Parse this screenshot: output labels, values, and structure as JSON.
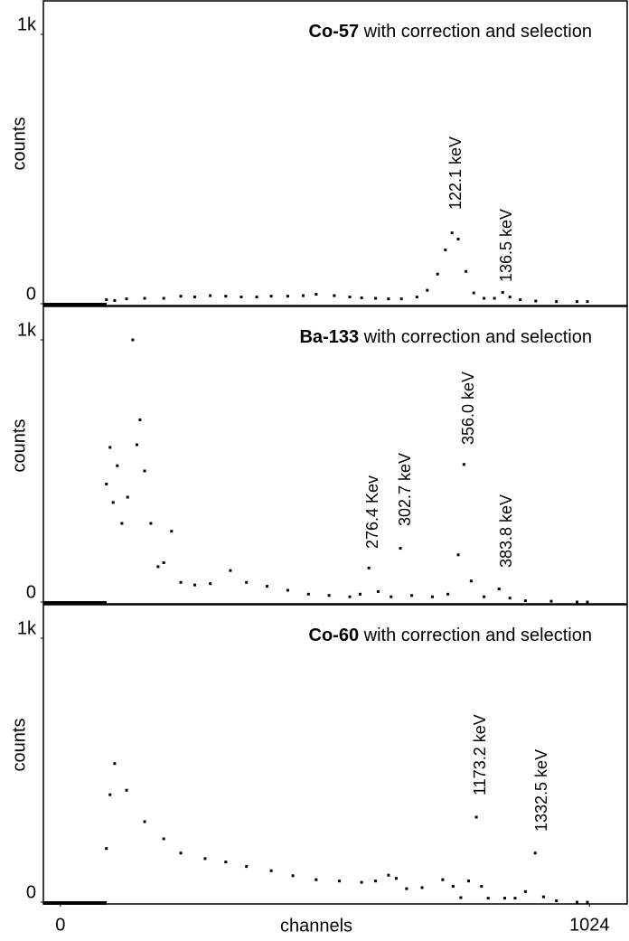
{
  "chart_data": [
    {
      "type": "scatter",
      "label": "Co-57",
      "title": "with correction and selection",
      "ylabel": "counts",
      "color": "#000000",
      "xlim": [
        -33,
        1097
      ],
      "ylim": [
        0,
        1000
      ],
      "yticks": [
        0,
        {
          "value": 1000,
          "label": "1k"
        }
      ],
      "annotations": [
        "122.1 keV",
        "136.5  keV"
      ],
      "x": [
        89,
        105,
        128,
        163,
        200,
        233,
        260,
        290,
        320,
        350,
        380,
        408,
        440,
        470,
        495,
        530,
        560,
        583,
        610,
        635,
        660,
        690,
        710,
        730,
        745,
        758,
        770,
        785,
        800,
        820,
        840,
        856,
        870,
        890,
        920,
        960,
        1000,
        1020
      ],
      "values": [
        15,
        12,
        18,
        20,
        20,
        28,
        25,
        30,
        28,
        25,
        25,
        28,
        28,
        30,
        35,
        30,
        25,
        22,
        20,
        18,
        18,
        25,
        50,
        110,
        200,
        263,
        240,
        120,
        40,
        20,
        20,
        42,
        25,
        15,
        10,
        8,
        8,
        8
      ]
    },
    {
      "type": "scatter",
      "label": "Ba-133",
      "title": "with correction and selection",
      "ylabel": "counts",
      "color": "#000000",
      "xlim": [
        -33,
        1097
      ],
      "ylim": [
        0,
        1000
      ],
      "yticks": [
        0,
        {
          "value": 1000,
          "label": "1k"
        }
      ],
      "annotations": [
        "276.4 Kev",
        "302.7 keV",
        "356.0 keV",
        "383.8 keV"
      ],
      "x": [
        89,
        96,
        102,
        110,
        119,
        130,
        140,
        148,
        154,
        163,
        175,
        189,
        200,
        215,
        233,
        260,
        290,
        329,
        360,
        400,
        440,
        480,
        520,
        560,
        580,
        597,
        615,
        640,
        658,
        680,
        720,
        750,
        770,
        781,
        795,
        820,
        849,
        870,
        900,
        950,
        1000,
        1020
      ],
      "values": [
        450,
        590,
        380,
        520,
        300,
        400,
        1000,
        600,
        695,
        500,
        300,
        135,
        150,
        270,
        75,
        65,
        70,
        120,
        75,
        60,
        45,
        30,
        25,
        20,
        30,
        130,
        40,
        20,
        205,
        25,
        20,
        30,
        180,
        525,
        80,
        20,
        50,
        15,
        5,
        3,
        0,
        0
      ]
    },
    {
      "type": "scatter",
      "label": "Co-60",
      "title": "with correction and selection",
      "ylabel": "counts",
      "xlabel": "channels",
      "color": "#000000",
      "xlim": [
        -33,
        1097
      ],
      "ylim": [
        0,
        1000
      ],
      "yticks": [
        0,
        {
          "value": 1000,
          "label": "1k"
        }
      ],
      "xticks": [
        0,
        1024
      ],
      "annotations": [
        "1173.2 keV",
        "1332.5 keV"
      ],
      "x": [
        89,
        96,
        105,
        128,
        163,
        200,
        233,
        280,
        320,
        360,
        408,
        450,
        495,
        540,
        583,
        610,
        635,
        650,
        670,
        700,
        740,
        760,
        775,
        790,
        805,
        815,
        828,
        860,
        880,
        900,
        919,
        935,
        960,
        1000,
        1020
      ],
      "values": [
        203,
        407,
        525,
        424,
        305,
        240,
        186,
        165,
        152,
        135,
        119,
        100,
        85,
        80,
        75,
        80,
        102,
        90,
        51,
        55,
        85,
        60,
        17,
        80,
        322,
        60,
        15,
        15,
        15,
        40,
        186,
        20,
        5,
        0,
        0
      ]
    }
  ]
}
